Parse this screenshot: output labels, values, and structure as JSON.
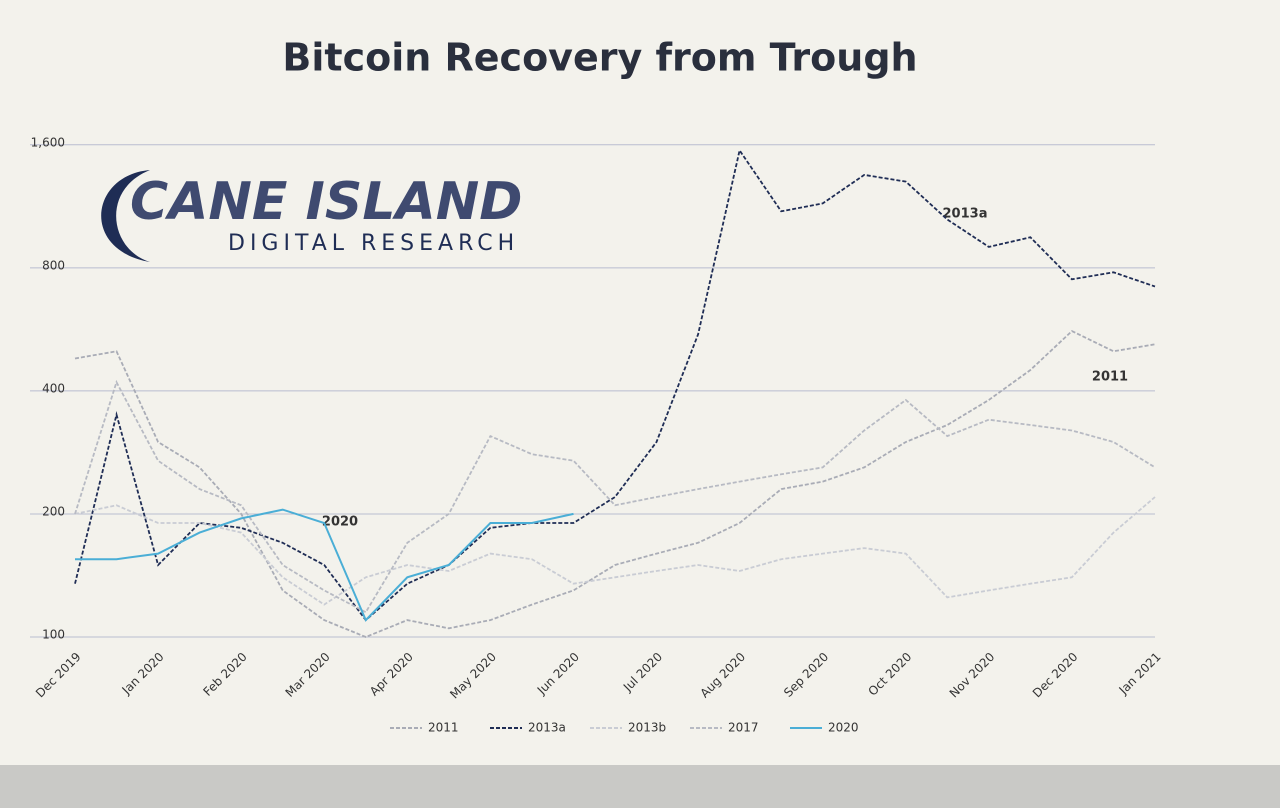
{
  "chart_data": {
    "type": "line",
    "title": "Bitcoin Recovery from Trough",
    "logo": {
      "name": "CANE ISLAND",
      "tagline": "DIGITAL RESEARCH"
    },
    "annotations": [
      "2020",
      "2013a",
      "2011"
    ],
    "categories": [
      "Dec 2019",
      null,
      "Jan 2020",
      null,
      "Feb 2020",
      null,
      "Mar 2020",
      null,
      "Apr 2020",
      null,
      "May 2020",
      null,
      "Jun 2020",
      null,
      "Jul 2020",
      null,
      "Aug 2020",
      null,
      "Sep 2020",
      null,
      "Oct 2020",
      null,
      "Nov 2020",
      null,
      "Dec 2020",
      null,
      "Jan 2021"
    ],
    "log_scale": true,
    "ylim": [
      100,
      1700
    ],
    "yticks": [
      100,
      200,
      400,
      800,
      {
        "value": 1600,
        "label": "1,600"
      }
    ],
    "grid": true,
    "legend": "bottom",
    "series": [
      {
        "name": "2011",
        "color": "#a9acb6",
        "style": "dashed",
        "values": [
          480,
          500,
          300,
          260,
          200,
          130,
          110,
          100,
          110,
          105,
          110,
          120,
          130,
          150,
          160,
          170,
          190,
          230,
          240,
          260,
          300,
          330,
          380,
          450,
          560,
          500,
          520
        ]
      },
      {
        "name": "2013a",
        "color": "#1f2d55",
        "style": "dashed",
        "values": [
          135,
          350,
          150,
          190,
          185,
          170,
          150,
          110,
          135,
          150,
          185,
          190,
          190,
          220,
          300,
          550,
          1550,
          1100,
          1150,
          1350,
          1300,
          1050,
          900,
          950,
          750,
          780,
          720
        ]
      },
      {
        "name": "2013b",
        "color": "#c9ccd4",
        "style": "dashed",
        "values": [
          200,
          210,
          190,
          190,
          180,
          140,
          120,
          140,
          150,
          145,
          160,
          155,
          135,
          140,
          145,
          150,
          145,
          155,
          160,
          165,
          160,
          125,
          130,
          135,
          140,
          180,
          220
        ]
      },
      {
        "name": "2017",
        "color": "#b7bac3",
        "style": "dashed",
        "values": [
          200,
          420,
          270,
          230,
          210,
          150,
          130,
          115,
          170,
          200,
          310,
          280,
          270,
          210,
          220,
          230,
          240,
          250,
          260,
          320,
          380,
          310,
          340,
          330,
          320,
          300,
          260
        ]
      },
      {
        "name": "2020",
        "color": "#4aaed6",
        "style": "solid",
        "values": [
          155,
          155,
          160,
          180,
          195,
          205,
          190,
          110,
          140,
          150,
          190,
          190,
          200,
          null,
          null,
          null,
          null,
          null,
          null,
          null,
          null,
          null,
          null,
          null,
          null,
          null,
          null
        ]
      }
    ]
  }
}
